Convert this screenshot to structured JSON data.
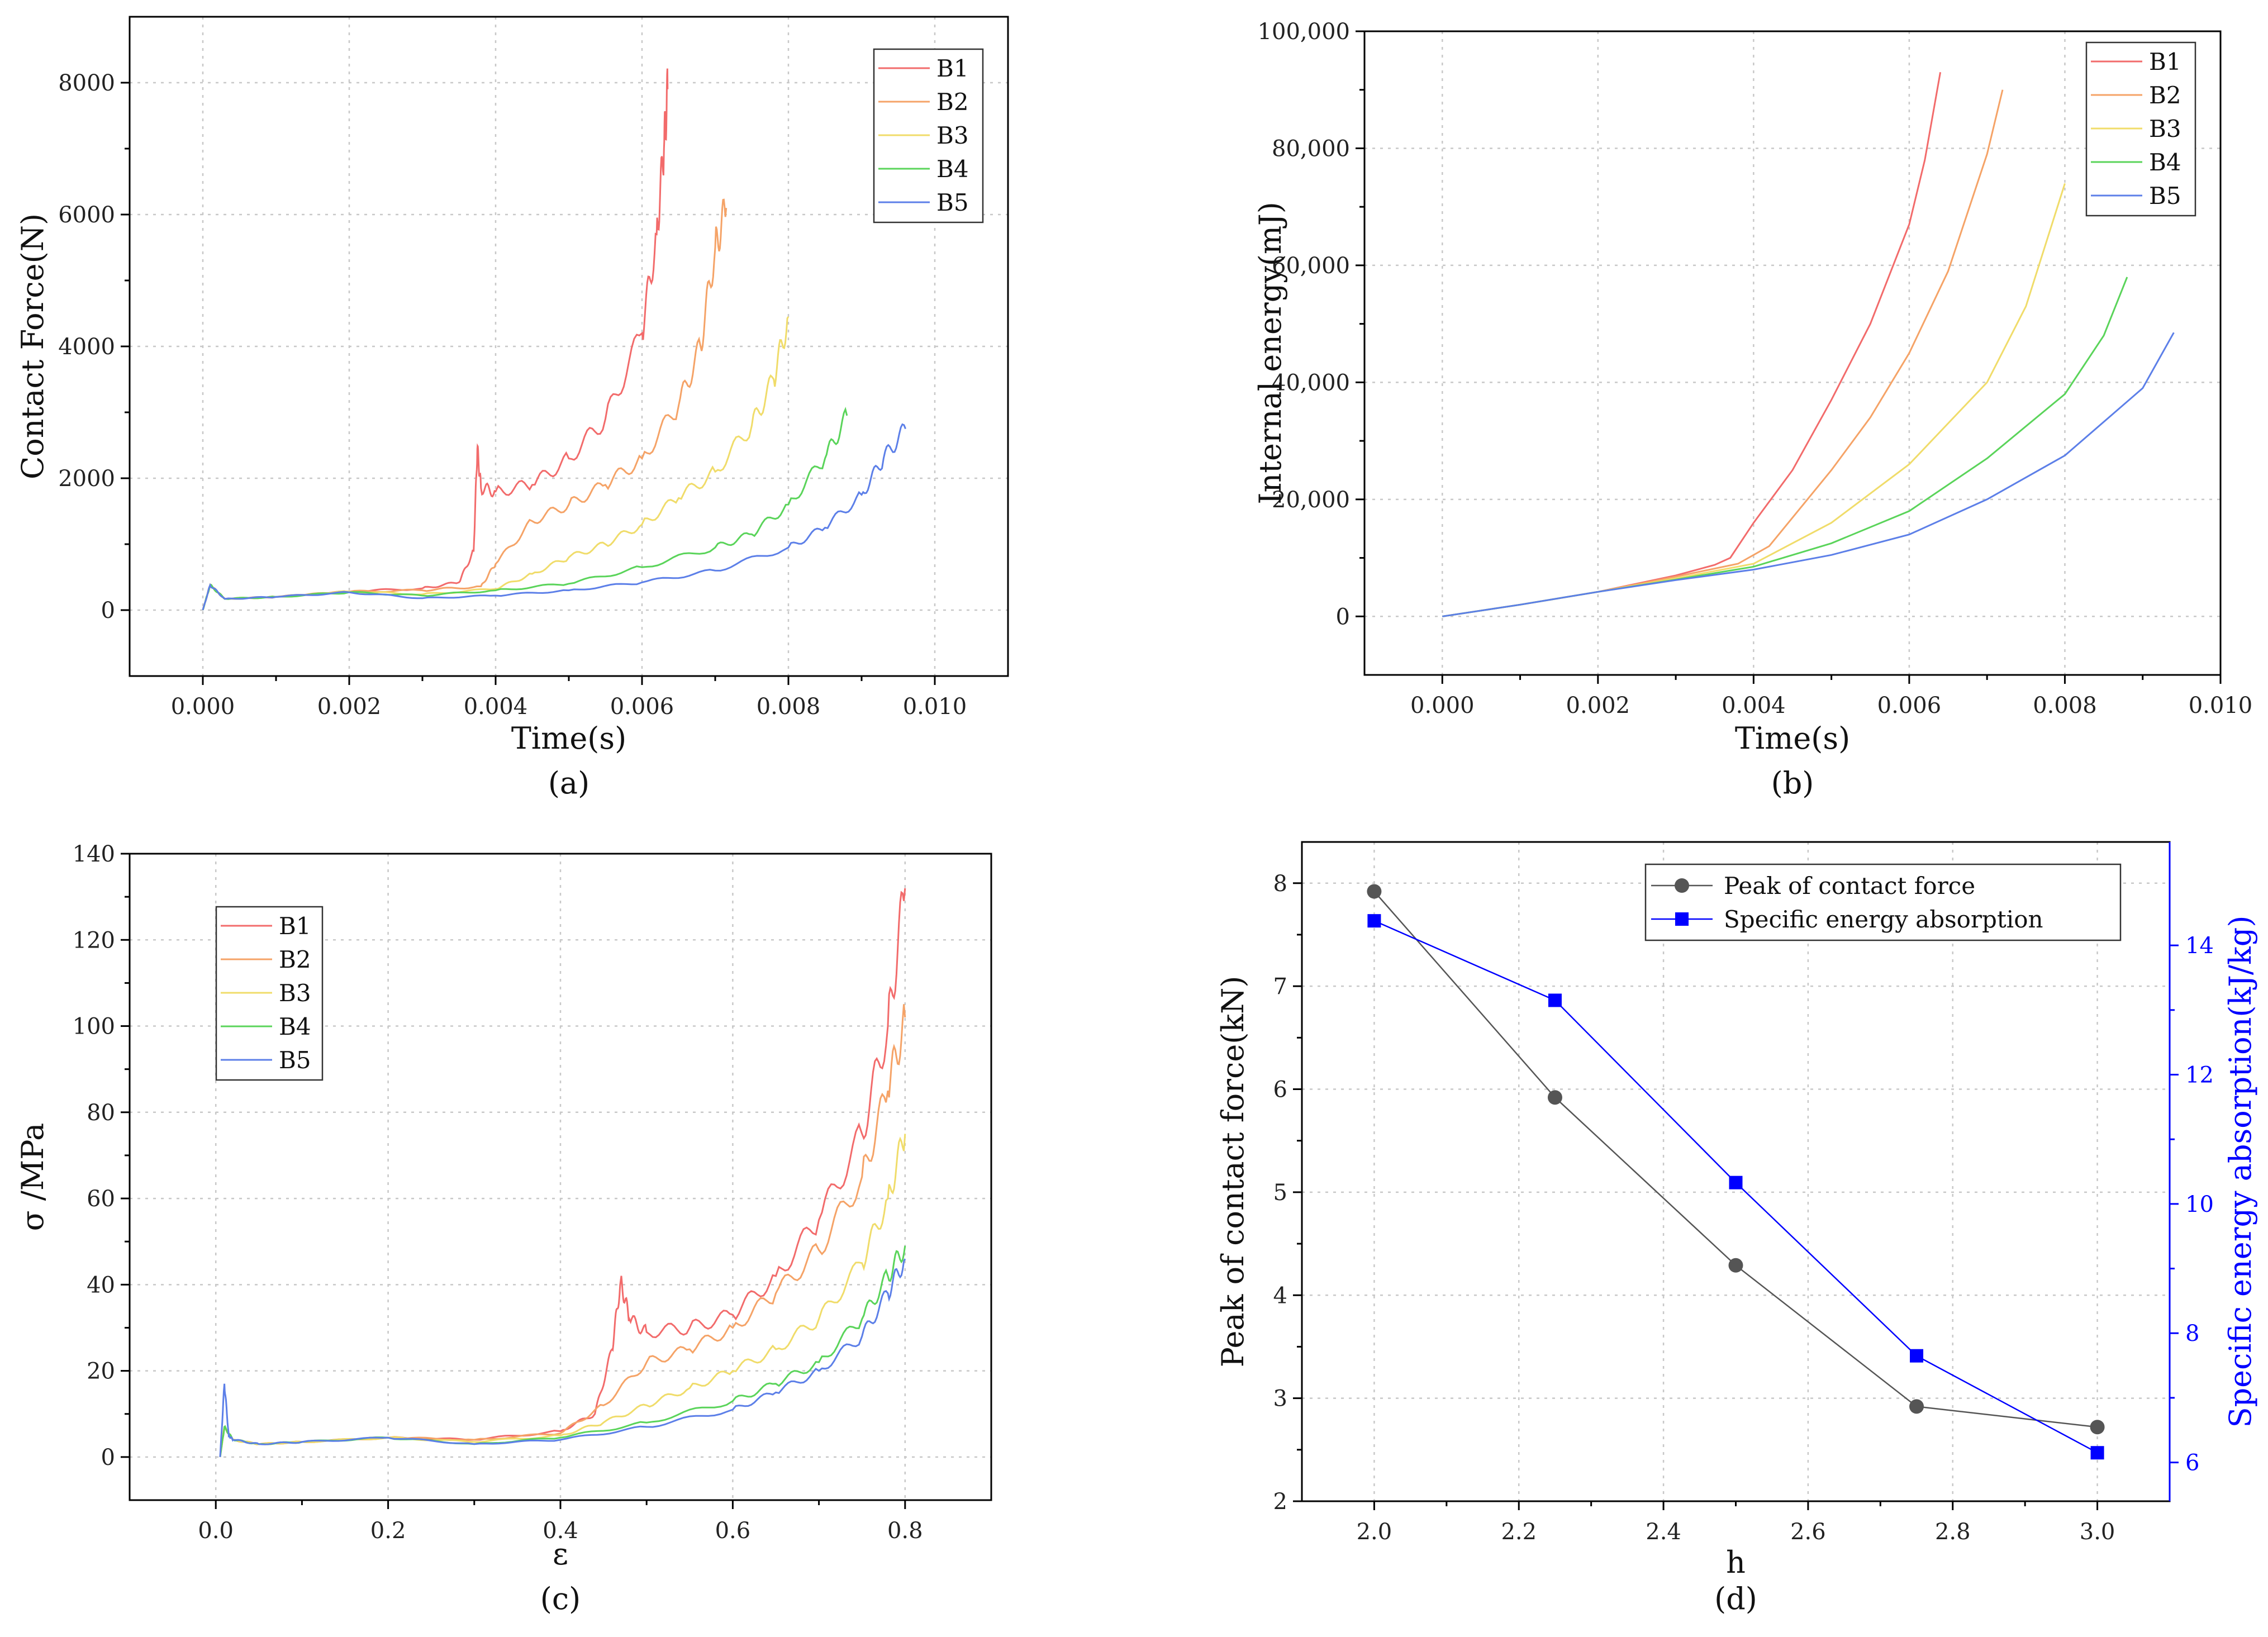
{
  "chart_data": [
    {
      "id": "a",
      "type": "line",
      "caption": "(a)",
      "xlabel": "Time(s)",
      "ylabel": "Contact Force(N)",
      "xlim": [
        -0.001,
        0.011
      ],
      "ylim": [
        -1000,
        9000
      ],
      "xticks": [
        "0.000",
        "0.002",
        "0.004",
        "0.006",
        "0.008",
        "0.010"
      ],
      "yticks": [
        "0",
        "2000",
        "4000",
        "6000",
        "8000"
      ],
      "legend": "top-right",
      "series": [
        {
          "name": "B1",
          "color": "#f26b6b",
          "x": [
            0,
            0.0001,
            0.0003,
            0.001,
            0.002,
            0.003,
            0.0035,
            0.0037,
            0.00375,
            0.0038,
            0.004,
            0.0045,
            0.005,
            0.0055,
            0.006,
            0.0062,
            0.0063,
            0.00635
          ],
          "y": [
            0,
            380,
            170,
            200,
            280,
            330,
            420,
            900,
            2450,
            1850,
            1800,
            1900,
            2300,
            2900,
            4200,
            5700,
            7000,
            7900
          ]
        },
        {
          "name": "B2",
          "color": "#f5a367",
          "x": [
            0,
            0.0001,
            0.0003,
            0.001,
            0.002,
            0.003,
            0.0038,
            0.004,
            0.0045,
            0.005,
            0.0055,
            0.006,
            0.0065,
            0.0068,
            0.007,
            0.00715
          ],
          "y": [
            0,
            380,
            170,
            200,
            280,
            300,
            360,
            700,
            1350,
            1600,
            1900,
            2300,
            3100,
            4000,
            5500,
            6100
          ]
        },
        {
          "name": "B3",
          "color": "#f0dc6a",
          "x": [
            0,
            0.0001,
            0.0003,
            0.001,
            0.002,
            0.003,
            0.004,
            0.0045,
            0.005,
            0.0055,
            0.006,
            0.0065,
            0.007,
            0.0075,
            0.0078,
            0.008
          ],
          "y": [
            0,
            380,
            170,
            200,
            280,
            240,
            320,
            550,
            800,
            1000,
            1300,
            1700,
            2100,
            2800,
            3500,
            4450
          ]
        },
        {
          "name": "B4",
          "color": "#5ad45a",
          "x": [
            0,
            0.0001,
            0.0003,
            0.001,
            0.002,
            0.003,
            0.004,
            0.005,
            0.006,
            0.007,
            0.0075,
            0.008,
            0.0085,
            0.0088
          ],
          "y": [
            0,
            380,
            170,
            200,
            270,
            220,
            300,
            400,
            650,
            950,
            1150,
            1600,
            2300,
            2950
          ]
        },
        {
          "name": "B5",
          "color": "#5c7fe8",
          "x": [
            0,
            0.0001,
            0.0003,
            0.001,
            0.002,
            0.003,
            0.004,
            0.005,
            0.006,
            0.007,
            0.008,
            0.0085,
            0.009,
            0.0093,
            0.0096
          ],
          "y": [
            0,
            380,
            170,
            200,
            270,
            180,
            220,
            300,
            420,
            600,
            950,
            1250,
            1750,
            2300,
            2750
          ]
        }
      ]
    },
    {
      "id": "b",
      "type": "line",
      "caption": "(b)",
      "xlabel": "Time(s)",
      "ylabel": "Internal energy(mJ)",
      "xlim": [
        -0.001,
        0.01
      ],
      "ylim": [
        -10000,
        100000
      ],
      "xticks": [
        "0.000",
        "0.002",
        "0.004",
        "0.006",
        "0.008",
        "0.010"
      ],
      "yticks": [
        "0",
        "20,000",
        "40,000",
        "60,000",
        "80,000",
        "100,000"
      ],
      "legend": "top-right",
      "series": [
        {
          "name": "B1",
          "color": "#f26b6b",
          "x": [
            0,
            0.001,
            0.002,
            0.003,
            0.0035,
            0.0037,
            0.004,
            0.0045,
            0.005,
            0.0055,
            0.006,
            0.0062,
            0.0064
          ],
          "y": [
            0,
            2000,
            4200,
            7000,
            8800,
            10000,
            16000,
            25000,
            37000,
            50000,
            67000,
            78000,
            93000
          ]
        },
        {
          "name": "B2",
          "color": "#f5a367",
          "x": [
            0,
            0.001,
            0.002,
            0.003,
            0.0038,
            0.0042,
            0.005,
            0.0055,
            0.006,
            0.0065,
            0.007,
            0.0072
          ],
          "y": [
            0,
            2000,
            4200,
            6800,
            9000,
            12000,
            25000,
            34000,
            45000,
            59000,
            79000,
            90000
          ]
        },
        {
          "name": "B3",
          "color": "#f0dc6a",
          "x": [
            0,
            0.001,
            0.002,
            0.003,
            0.004,
            0.005,
            0.006,
            0.007,
            0.0075,
            0.008
          ],
          "y": [
            0,
            2000,
            4200,
            6500,
            9000,
            16000,
            26000,
            40000,
            53000,
            74000
          ]
        },
        {
          "name": "B4",
          "color": "#5ad45a",
          "x": [
            0,
            0.001,
            0.002,
            0.003,
            0.004,
            0.005,
            0.006,
            0.007,
            0.008,
            0.0085,
            0.0088
          ],
          "y": [
            0,
            2000,
            4200,
            6300,
            8500,
            12500,
            18000,
            27000,
            38000,
            48000,
            58000
          ]
        },
        {
          "name": "B5",
          "color": "#5c7fe8",
          "x": [
            0,
            0.001,
            0.002,
            0.003,
            0.004,
            0.005,
            0.006,
            0.007,
            0.008,
            0.009,
            0.0094
          ],
          "y": [
            0,
            2000,
            4200,
            6200,
            8000,
            10500,
            14000,
            20000,
            27500,
            39000,
            48500
          ]
        }
      ]
    },
    {
      "id": "c",
      "type": "line",
      "caption": "(c)",
      "xlabel": "ε",
      "ylabel": "σ /MPa",
      "xlim": [
        -0.1,
        0.9
      ],
      "ylim": [
        -10,
        140
      ],
      "xticks": [
        "0.0",
        "0.2",
        "0.4",
        "0.6",
        "0.8"
      ],
      "yticks": [
        "0",
        "20",
        "40",
        "60",
        "80",
        "100",
        "120",
        "140"
      ],
      "legend": "top-left",
      "series": [
        {
          "name": "B1",
          "color": "#f26b6b",
          "x": [
            0.005,
            0.01,
            0.02,
            0.05,
            0.1,
            0.2,
            0.3,
            0.4,
            0.44,
            0.46,
            0.47,
            0.48,
            0.5,
            0.55,
            0.6,
            0.65,
            0.7,
            0.75,
            0.78,
            0.8
          ],
          "y": [
            0,
            7,
            4,
            3,
            3.5,
            4.5,
            4,
            6,
            10,
            25,
            41,
            32,
            29,
            30,
            33,
            42,
            55,
            75,
            100,
            132
          ]
        },
        {
          "name": "B2",
          "color": "#f5a367",
          "x": [
            0.005,
            0.01,
            0.02,
            0.05,
            0.1,
            0.2,
            0.3,
            0.4,
            0.45,
            0.5,
            0.55,
            0.6,
            0.65,
            0.7,
            0.75,
            0.78,
            0.8
          ],
          "y": [
            0,
            7,
            4,
            3,
            3.5,
            4.5,
            4,
            5.5,
            12,
            22,
            25,
            30,
            38,
            48,
            65,
            85,
            102
          ]
        },
        {
          "name": "B3",
          "color": "#f0dc6a",
          "x": [
            0.005,
            0.01,
            0.02,
            0.05,
            0.1,
            0.2,
            0.3,
            0.4,
            0.45,
            0.5,
            0.55,
            0.6,
            0.65,
            0.7,
            0.75,
            0.78,
            0.8
          ],
          "y": [
            0,
            7,
            4,
            3,
            3.5,
            4.5,
            3.5,
            5,
            8,
            12,
            16,
            20,
            25,
            32,
            45,
            60,
            75
          ]
        },
        {
          "name": "B4",
          "color": "#5ad45a",
          "x": [
            0.005,
            0.01,
            0.02,
            0.05,
            0.1,
            0.2,
            0.3,
            0.4,
            0.5,
            0.6,
            0.65,
            0.7,
            0.75,
            0.78,
            0.8
          ],
          "y": [
            0,
            7,
            4,
            3,
            3.5,
            4.5,
            3,
            4.5,
            8,
            13,
            17,
            22,
            32,
            42,
            49
          ]
        },
        {
          "name": "B5",
          "color": "#5c7fe8",
          "x": [
            0.005,
            0.01,
            0.015,
            0.02,
            0.05,
            0.1,
            0.2,
            0.3,
            0.4,
            0.5,
            0.6,
            0.65,
            0.7,
            0.75,
            0.78,
            0.8
          ],
          "y": [
            0,
            17,
            5,
            4,
            3,
            3.5,
            4.5,
            3,
            4,
            7,
            11,
            15,
            20,
            28,
            38,
            46
          ]
        }
      ]
    },
    {
      "id": "d",
      "type": "line",
      "caption": "(d)",
      "xlabel": "h",
      "ylabel": "Peak of contact force(kN)",
      "ylabel_right": "Specific energy absorption(kJ/kg)",
      "xlim": [
        1.9,
        3.1
      ],
      "ylim": [
        2,
        8.4
      ],
      "ylim_right": [
        5.4,
        15.6
      ],
      "xticks": [
        "2.0",
        "2.2",
        "2.4",
        "2.6",
        "2.8",
        "3.0"
      ],
      "yticks": [
        "2",
        "3",
        "4",
        "5",
        "6",
        "7",
        "8"
      ],
      "yticks_right": [
        "6",
        "8",
        "10",
        "12",
        "14"
      ],
      "legend": "top-right",
      "categories": [
        2.0,
        2.25,
        2.5,
        2.75,
        3.0
      ],
      "series": [
        {
          "name": "Peak of contact force",
          "color": "#555555",
          "marker": "circle",
          "axis": "left",
          "values": [
            7.92,
            5.92,
            4.29,
            2.92,
            2.72
          ]
        },
        {
          "name": "Specific energy absorption",
          "color": "#0000ff",
          "marker": "square",
          "axis": "right",
          "values": [
            14.38,
            13.15,
            10.33,
            7.65,
            6.15
          ]
        }
      ]
    }
  ]
}
